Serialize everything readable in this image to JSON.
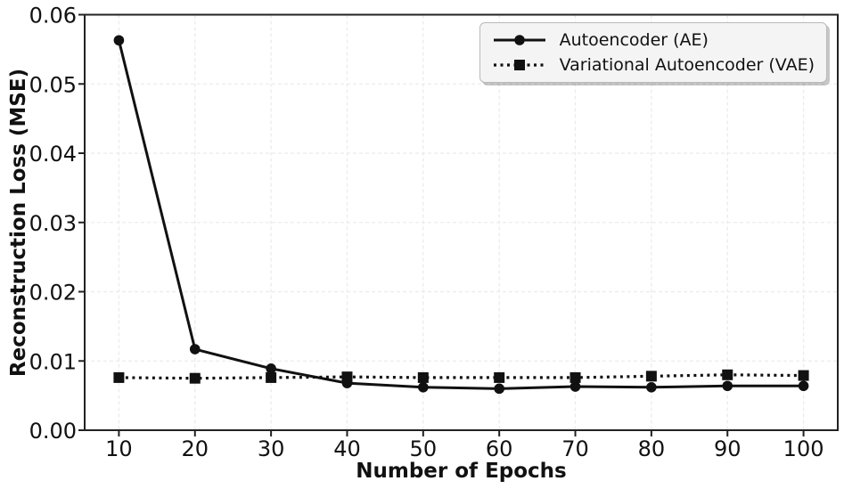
{
  "figure": {
    "background": "#ffffff",
    "axes_color": "#222222",
    "grid_color": "#ebebeb",
    "legend_background": "#f4f4f4",
    "legend_border": "#b9b9b9"
  },
  "chart_data": {
    "type": "line",
    "title": "",
    "xlabel": "Number of Epochs",
    "ylabel": "Reconstruction Loss (MSE)",
    "xlim": [
      5.5,
      104.5
    ],
    "ylim": [
      0,
      0.06
    ],
    "grid": true,
    "grid_style": "dashed",
    "legend_position": "upper right",
    "x": [
      10,
      20,
      30,
      40,
      50,
      60,
      70,
      80,
      90,
      100
    ],
    "x_tick_labels": [
      "10",
      "20",
      "30",
      "40",
      "50",
      "60",
      "70",
      "80",
      "90",
      "100"
    ],
    "y_ticks": [
      0,
      0.01,
      0.02,
      0.03,
      0.04,
      0.05,
      0.06
    ],
    "y_tick_labels": [
      "0.00",
      "0.01",
      "0.02",
      "0.03",
      "0.04",
      "0.05",
      "0.06"
    ],
    "series": [
      {
        "id": "ae",
        "name": "Autoencoder (AE)",
        "color": "#111111",
        "linestyle": "solid",
        "marker": "circle",
        "values": [
          0.0563,
          0.0117,
          0.0089,
          0.0068,
          0.0062,
          0.006,
          0.0063,
          0.0062,
          0.0064,
          0.0064
        ]
      },
      {
        "id": "vae",
        "name": "Variational Autoencoder (VAE)",
        "color": "#111111",
        "linestyle": "dotted",
        "marker": "square",
        "values": [
          0.0076,
          0.0075,
          0.0076,
          0.0077,
          0.0076,
          0.0076,
          0.0076,
          0.0078,
          0.008,
          0.0079
        ]
      }
    ]
  }
}
